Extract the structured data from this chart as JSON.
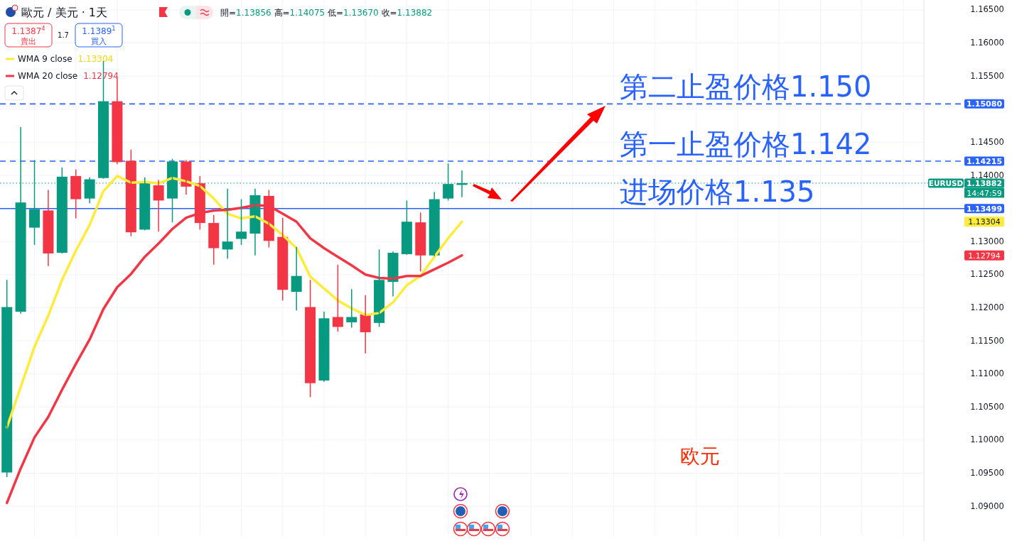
{
  "chart_data": {
    "type": "candlestick",
    "title": "歐元 / 美元 · 1天",
    "categories": [
      null,
      null,
      null,
      null,
      null,
      null,
      null,
      null,
      null,
      null,
      null,
      null,
      null,
      null,
      null,
      null,
      null,
      null,
      null,
      null,
      null,
      null,
      null,
      null,
      null,
      null,
      null,
      null,
      null,
      null,
      null,
      null,
      null,
      null,
      null,
      null,
      null,
      null,
      null,
      null,
      null,
      null,
      null,
      null,
      null,
      null,
      null,
      null,
      null,
      null,
      null,
      null,
      null,
      null,
      null,
      null,
      null,
      null,
      null,
      null,
      null,
      null,
      null,
      null,
      null,
      null,
      null
    ],
    "ohlc": [
      [
        1.0951,
        1.1242,
        1.0944,
        1.1201
      ],
      [
        1.1194,
        1.1473,
        1.1191,
        1.1359
      ],
      [
        1.1321,
        1.1423,
        1.1295,
        1.1349
      ],
      [
        1.1347,
        1.1378,
        1.1263,
        1.1282
      ],
      [
        1.1283,
        1.1412,
        1.1282,
        1.1398
      ],
      [
        1.1399,
        1.1409,
        1.1335,
        1.1364
      ],
      [
        1.1365,
        1.1397,
        1.1358,
        1.1394
      ],
      [
        1.1396,
        1.1573,
        1.1395,
        1.1512
      ],
      [
        1.1512,
        1.1547,
        1.1417,
        1.142
      ],
      [
        1.1422,
        1.1439,
        1.1308,
        1.1314
      ],
      [
        1.1318,
        1.1397,
        1.1317,
        1.1389
      ],
      [
        1.1385,
        1.1393,
        1.1315,
        1.1362
      ],
      [
        1.1365,
        1.1425,
        1.1329,
        1.1421
      ],
      [
        1.1421,
        1.1423,
        1.1371,
        1.1383
      ],
      [
        1.1388,
        1.1399,
        1.1318,
        1.1328
      ],
      [
        1.1328,
        1.134,
        1.1265,
        1.129
      ],
      [
        1.1288,
        1.138,
        1.1274,
        1.13
      ],
      [
        1.1304,
        1.1364,
        1.1295,
        1.1315
      ],
      [
        1.1312,
        1.138,
        1.1279,
        1.137
      ],
      [
        1.1369,
        1.1378,
        1.1291,
        1.1301
      ],
      [
        1.1307,
        1.1336,
        1.1211,
        1.1227
      ],
      [
        1.1224,
        1.1292,
        1.1196,
        1.1248
      ],
      [
        1.1201,
        1.1242,
        1.1065,
        1.1086
      ],
      [
        1.109,
        1.1194,
        1.1088,
        1.1184
      ],
      [
        1.1186,
        1.1265,
        1.1164,
        1.1171
      ],
      [
        1.1178,
        1.1228,
        1.117,
        1.1186
      ],
      [
        1.119,
        1.1219,
        1.1131,
        1.1163
      ],
      [
        1.1177,
        1.1288,
        1.1171,
        1.1242
      ],
      [
        1.1239,
        1.1285,
        1.1217,
        1.1283
      ],
      [
        1.1281,
        1.1362,
        1.128,
        1.133
      ],
      [
        1.1329,
        1.1344,
        1.1255,
        1.1279
      ],
      [
        1.1279,
        1.1375,
        1.1278,
        1.1364
      ],
      [
        1.1365,
        1.1418,
        1.1362,
        1.1387
      ],
      [
        1.13856,
        1.14075,
        1.1367,
        1.13882
      ],
      null,
      null,
      null,
      null,
      null,
      null,
      null,
      null,
      null,
      null,
      null,
      null,
      null,
      null,
      null,
      null,
      null,
      null,
      null,
      null,
      null,
      null,
      null,
      null,
      null,
      null,
      null,
      null,
      null,
      null,
      null,
      null,
      null
    ],
    "series": [
      {
        "name": "WMA 9 close",
        "type": "line",
        "color": "#ffeb3b",
        "values": [
          1.1019,
          1.108,
          1.1141,
          1.1188,
          1.1242,
          1.1286,
          1.1325,
          1.1376,
          1.1399,
          1.1389,
          1.139,
          1.1388,
          1.1396,
          1.1391,
          1.1384,
          1.1365,
          1.1342,
          1.1335,
          1.1338,
          1.1327,
          1.131,
          1.129,
          1.1247,
          1.1229,
          1.1211,
          1.1199,
          1.1189,
          1.1192,
          1.1208,
          1.1234,
          1.1248,
          1.1277,
          1.1305,
          1.133,
          null,
          null,
          null,
          null,
          null,
          null,
          null,
          null,
          null,
          null,
          null,
          null,
          null,
          null,
          null,
          null,
          null,
          null,
          null,
          null,
          null,
          null,
          null,
          null,
          null,
          null,
          null,
          null,
          null,
          null,
          null,
          null,
          null
        ]
      },
      {
        "name": "WMA 20 close",
        "type": "line",
        "color": "#f23645",
        "values": [
          1.0905,
          1.0957,
          1.1004,
          1.1035,
          1.1076,
          1.1115,
          1.1152,
          1.1198,
          1.1231,
          1.1251,
          1.1277,
          1.1297,
          1.1319,
          1.1336,
          1.1343,
          1.1347,
          1.1348,
          1.1351,
          1.1355,
          1.1354,
          1.1342,
          1.133,
          1.1305,
          1.129,
          1.1277,
          1.1264,
          1.125,
          1.1245,
          1.1244,
          1.1248,
          1.1248,
          1.1258,
          1.1268,
          1.1279,
          null,
          null,
          null,
          null,
          null,
          null,
          null,
          null,
          null,
          null,
          null,
          null,
          null,
          null,
          null,
          null,
          null,
          null,
          null,
          null,
          null,
          null,
          null,
          null,
          null,
          null,
          null,
          null,
          null,
          null,
          null,
          null,
          null
        ]
      }
    ],
    "ylim": [
      1.0855,
      1.1665
    ],
    "yticks": [
      {
        "value": 1.09,
        "label": "1.09000"
      },
      {
        "value": 1.095,
        "label": "1.09500"
      },
      {
        "value": 1.1,
        "label": "1.10000"
      },
      {
        "value": 1.105,
        "label": "1.10500"
      },
      {
        "value": 1.11,
        "label": "1.11000"
      },
      {
        "value": 1.115,
        "label": "1.11500"
      },
      {
        "value": 1.12,
        "label": "1.12000"
      },
      {
        "value": 1.125,
        "label": "1.12500"
      },
      {
        "value": 1.13,
        "label": "1.13000"
      },
      {
        "value": 1.135,
        "label": null
      },
      {
        "value": 1.14,
        "label": "1.14000"
      },
      {
        "value": 1.145,
        "label": "1.14500"
      },
      {
        "value": 1.15,
        "label": null
      },
      {
        "value": 1.155,
        "label": "1.15500"
      },
      {
        "value": 1.16,
        "label": "1.16000"
      },
      {
        "value": 1.165,
        "label": "1.16500"
      }
    ],
    "grid": true,
    "legend": "top left",
    "ref_lines": [
      {
        "axis": "y",
        "value": 1.1508,
        "label": "1.15080",
        "color": "#2962ff",
        "line_style": "dashed"
      },
      {
        "axis": "y",
        "value": 1.14215,
        "label": "1.14215",
        "color": "#2962ff",
        "line_style": "dashed"
      },
      {
        "axis": "y",
        "value": 1.13499,
        "label": "1.13499",
        "color": "#2962ff",
        "line_style": "solid"
      },
      {
        "axis": "y",
        "value": 1.13882,
        "label": "1.13882",
        "color": "#089981",
        "line_style": "dotted"
      }
    ],
    "annotations": [
      "開=1.13856 高=1.14075 低=1.13670 收=1.13882",
      "1.1387$^{4}$",
      "賣出",
      "1.7",
      "1.1389$^{1}$",
      "買入",
      {
        "text": "第二止盈价格1.150",
        "y": 1.1508
      },
      {
        "text": "第一止盈价格1.142",
        "y": 1.14215
      },
      {
        "text": "进场价格1.135",
        "y": 1.13499
      },
      {
        "text": "EURUSD",
        "y": 1.13882
      },
      "14:47:59",
      "欧元",
      "1.13304",
      "1.12794",
      "1.13304",
      "1.12794"
    ]
  }
}
